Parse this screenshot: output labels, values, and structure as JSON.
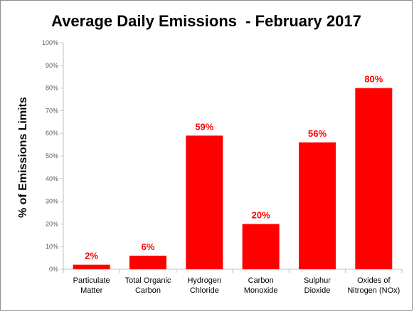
{
  "chart_data": {
    "type": "bar",
    "title": "Average Daily Emissions  - February 2017",
    "xlabel": "",
    "ylabel": "% of Emissions Limits",
    "categories": [
      [
        "Particulate",
        "Matter"
      ],
      [
        "Total Organic",
        "Carbon"
      ],
      [
        "Hydrogen",
        "Chloride"
      ],
      [
        "Carbon",
        "Monoxide"
      ],
      [
        "Sulphur",
        "Dioxide"
      ],
      [
        "Oxides of",
        "Nitrogen (NOx)"
      ]
    ],
    "values": [
      2,
      6,
      59,
      20,
      56,
      80
    ],
    "data_labels": [
      "2%",
      "6%",
      "59%",
      "20%",
      "56%",
      "80%"
    ],
    "ylim": [
      0,
      100
    ],
    "yticks": [
      "0%",
      "10%",
      "20%",
      "30%",
      "40%",
      "50%",
      "60%",
      "70%",
      "80%",
      "90%",
      "100%"
    ],
    "bar_color": "#ff0000",
    "grid": false,
    "legend": "none"
  }
}
